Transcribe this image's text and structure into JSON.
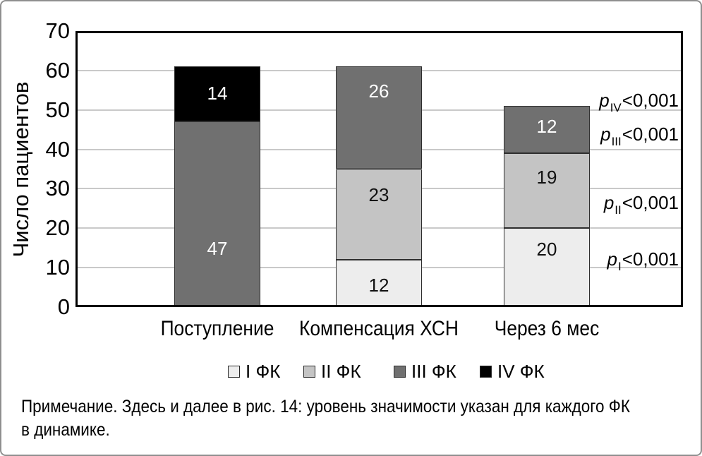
{
  "figure": {
    "note_line1": "Примечание. Здесь и далее в рис. 14: уровень значимости указан для каждого ФК",
    "note_line2": "в динамике."
  },
  "chart_data": {
    "type": "bar",
    "stacked": true,
    "ylabel": "Число пациентов",
    "ylim": [
      0,
      70
    ],
    "yticks": [
      0,
      10,
      20,
      30,
      40,
      50,
      60,
      70
    ],
    "grid": "horizontal-light-gray",
    "legend_position": "bottom",
    "categories": [
      "Поступление",
      "Компенсация ХСН",
      "Через 6 мес"
    ],
    "series": [
      {
        "name": "I ФК",
        "color": "#ededed",
        "label_color": "#111111",
        "values": [
          0,
          12,
          20
        ],
        "label_frac": [
          null,
          0.52,
          0.26
        ]
      },
      {
        "name": "II ФК",
        "color": "#c4c4c4",
        "label_color": "#111111",
        "values": [
          0,
          23,
          19
        ],
        "label_frac": [
          null,
          0.28,
          0.31
        ]
      },
      {
        "name": "III ФК",
        "color": "#707070",
        "label_color": "#ffffff",
        "values": [
          47,
          26,
          12
        ],
        "label_frac": [
          0.68,
          0.23,
          0.42
        ]
      },
      {
        "name": "IV ФК",
        "color": "#000000",
        "label_color": "#ffffff",
        "values": [
          14,
          0,
          0
        ],
        "label_frac": [
          0.47,
          null,
          null
        ]
      }
    ],
    "annotations": [
      {
        "symbol": "p",
        "subscript": "IV",
        "value": "<0,001"
      },
      {
        "symbol": "p",
        "subscript": "III",
        "value": "<0,001"
      },
      {
        "symbol": "p",
        "subscript": "II",
        "value": "<0,001"
      },
      {
        "symbol": "p",
        "subscript": "I",
        "value": "<0,001"
      }
    ],
    "colors": {
      "grid": "#c9c9c9",
      "plot_frame": "#000000",
      "figure_border": "#8f8f8f",
      "segment_border": "#2e2e2e"
    }
  }
}
